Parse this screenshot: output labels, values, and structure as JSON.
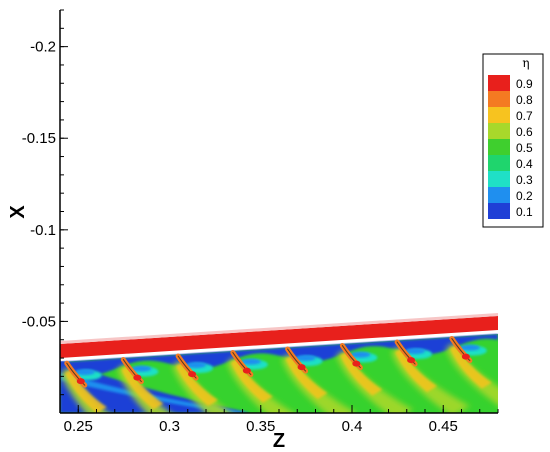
{
  "chart_data": {
    "type": "heatmap",
    "variable": "η",
    "xlabel": "Z",
    "ylabel": "X",
    "x_ticks": [
      0.25,
      0.3,
      0.35,
      0.4,
      0.45
    ],
    "x_tick_labels": [
      "0.25",
      "0.3",
      "0.35",
      "0.4",
      "0.45"
    ],
    "y_ticks": [
      -0.2,
      -0.15,
      -0.1,
      -0.05
    ],
    "y_tick_labels": [
      "-0.2",
      "-0.15",
      "-0.1",
      "-0.05"
    ],
    "xlim": [
      0.24,
      0.48
    ],
    "ylim": [
      -0.22,
      0.0
    ],
    "y_reversed": true,
    "legend": {
      "title": "η",
      "position": "right",
      "levels": [
        0.9,
        0.8,
        0.7,
        0.6,
        0.5,
        0.4,
        0.3,
        0.2,
        0.1
      ],
      "labels": [
        "0.9",
        "0.8",
        "0.7",
        "0.6",
        "0.5",
        "0.4",
        "0.3",
        "0.2",
        "0.1"
      ],
      "colors": [
        "#e8201c",
        "#f47a22",
        "#f7c31f",
        "#a8d82b",
        "#3fcf2e",
        "#1fd56d",
        "#1fe0c6",
        "#1f8fef",
        "#1f3fd6"
      ]
    },
    "film_holes_z": [
      0.247,
      0.278,
      0.308,
      0.338,
      0.368,
      0.398,
      0.428,
      0.458
    ],
    "colors": {
      "strip": "#e8201c",
      "background_field": "#36d22e",
      "low_region": "#1f3fd6"
    }
  }
}
